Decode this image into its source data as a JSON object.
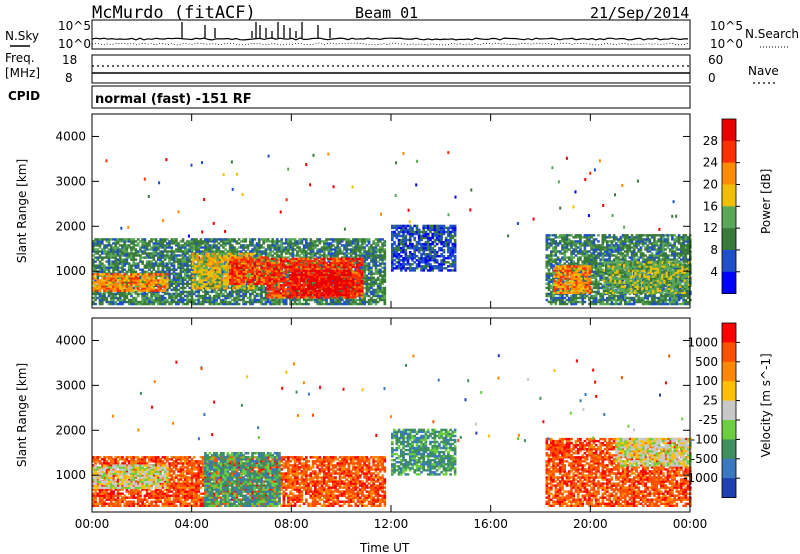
{
  "header": {
    "station": "McMurdo (fitACF)",
    "beam": "Beam 01",
    "date": "21/Sep/2014",
    "cpid_text": "normal (fast) -151 RF"
  },
  "noise_panel": {
    "left_label": "N.Sky",
    "right_label": "N.Search",
    "left_ticks": [
      "10^5",
      "10^0"
    ],
    "right_ticks": [
      "10^5",
      "10^0"
    ]
  },
  "freq_panel": {
    "left_label_1": "Freq.",
    "left_label_2": "[MHz]",
    "left_ticks": [
      "18",
      "8"
    ],
    "right_label": "Nave",
    "right_ticks": [
      "60",
      "0"
    ],
    "cpid_label": "CPID"
  },
  "chart_data": [
    {
      "type": "heatmap",
      "title": "",
      "xlabel": "Time UT",
      "ylabel": "Slant Range [km]",
      "x_ticks": [
        "00:00",
        "04:00",
        "08:00",
        "12:00",
        "16:00",
        "20:00",
        "00:00"
      ],
      "y_ticks": [
        "1000",
        "2000",
        "3000",
        "4000"
      ],
      "colorbar": {
        "label": "Power [dB]",
        "ticks": [
          "4",
          "8",
          "12",
          "16",
          "20",
          "24",
          "28"
        ],
        "colors": [
          "#0000ff",
          "#2050c8",
          "#3a7a3a",
          "#58a858",
          "#f0c000",
          "#ff8c00",
          "#ff3000",
          "#e80000"
        ]
      },
      "patches": [
        {
          "t0": 0.0,
          "t1": 11.7,
          "r0": 250,
          "r1": 1700,
          "level": 2
        },
        {
          "t0": 0.0,
          "t1": 3.0,
          "r0": 550,
          "r1": 950,
          "level": 5
        },
        {
          "t0": 4.0,
          "t1": 6.5,
          "r0": 600,
          "r1": 1400,
          "level": 4
        },
        {
          "t0": 5.5,
          "t1": 7.0,
          "r0": 700,
          "r1": 1300,
          "level": 6
        },
        {
          "t0": 7.0,
          "t1": 10.8,
          "r0": 400,
          "r1": 1300,
          "level": 6
        },
        {
          "t0": 8.0,
          "t1": 10.5,
          "r0": 450,
          "r1": 1000,
          "level": 7
        },
        {
          "t0": 12.0,
          "t1": 14.6,
          "r0": 1000,
          "r1": 2000,
          "level": 1
        },
        {
          "t0": 18.2,
          "t1": 24.0,
          "r0": 250,
          "r1": 1800,
          "level": 2
        },
        {
          "t0": 18.5,
          "t1": 20.0,
          "r0": 500,
          "r1": 1100,
          "level": 5
        },
        {
          "t0": 20.5,
          "t1": 24.0,
          "r0": 500,
          "r1": 1200,
          "level": 3
        }
      ]
    },
    {
      "type": "heatmap",
      "title": "",
      "xlabel": "Time UT",
      "ylabel": "Slant Range [km]",
      "x_ticks": [
        "00:00",
        "04:00",
        "08:00",
        "12:00",
        "16:00",
        "20:00",
        "00:00"
      ],
      "y_ticks": [
        "1000",
        "2000",
        "3000",
        "4000"
      ],
      "colorbar": {
        "label": "Velocity [m s^-1]",
        "ticks": [
          "1000",
          "500",
          "100",
          "25",
          "-25",
          "-100",
          "-500",
          "-1000"
        ],
        "colors": [
          "#2040b0",
          "#3a78c0",
          "#3f8f5f",
          "#6bcf3f",
          "#c8c8c8",
          "#ffc000",
          "#ff8800",
          "#ff5000",
          "#ff0000"
        ]
      },
      "patches": [
        {
          "t0": 0.0,
          "t1": 11.7,
          "r0": 300,
          "r1": 1400,
          "level": 7
        },
        {
          "t0": 0.0,
          "t1": 3.0,
          "r0": 700,
          "r1": 1200,
          "level": 4
        },
        {
          "t0": 4.5,
          "t1": 7.5,
          "r0": 300,
          "r1": 1500,
          "level": 2
        },
        {
          "t0": 12.0,
          "t1": 14.6,
          "r0": 1000,
          "r1": 2000,
          "level": 2
        },
        {
          "t0": 18.2,
          "t1": 24.0,
          "r0": 300,
          "r1": 1800,
          "level": 7
        },
        {
          "t0": 21.0,
          "t1": 24.0,
          "r0": 1200,
          "r1": 1800,
          "level": 4
        }
      ]
    }
  ]
}
